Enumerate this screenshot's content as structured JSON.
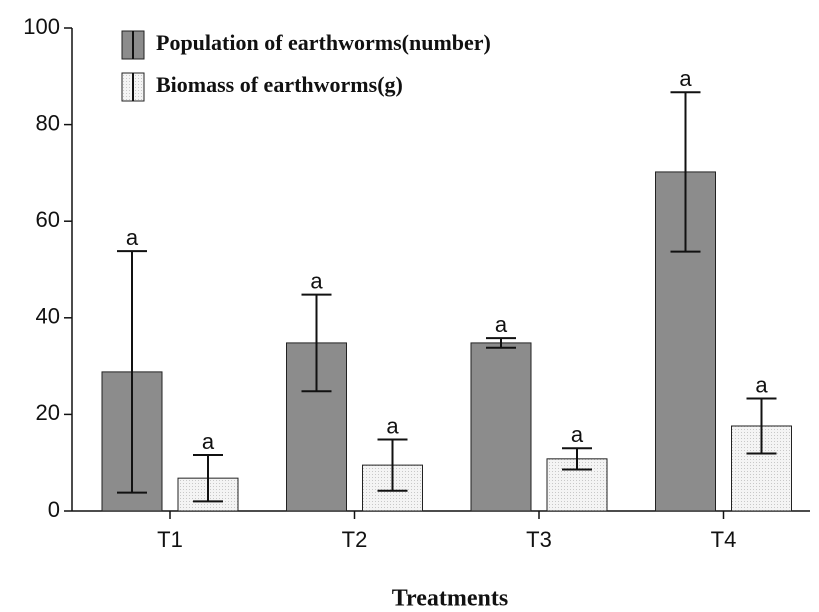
{
  "chart_data": {
    "type": "bar",
    "x_label": "Treatments",
    "categories": [
      "T1",
      "T2",
      "T3",
      "T4"
    ],
    "series": [
      {
        "name": "Population of earthworms(number)",
        "color": "#8c8c8c",
        "values": [
          28.8,
          34.8,
          34.8,
          70.2
        ],
        "errors": [
          25,
          10,
          1,
          16.5
        ],
        "letters": [
          "a",
          "a",
          "a",
          "a"
        ]
      },
      {
        "name": "Biomass of earthworms(g)",
        "color": "#eeeeee",
        "values": [
          6.8,
          9.5,
          10.8,
          17.6
        ],
        "errors": [
          4.8,
          5.3,
          2.2,
          5.7
        ],
        "letters": [
          "a",
          "a",
          "a",
          "a"
        ]
      }
    ],
    "ylim": [
      0,
      100
    ],
    "yticks": [
      0,
      20,
      40,
      60,
      80,
      100
    ],
    "grid": false
  }
}
